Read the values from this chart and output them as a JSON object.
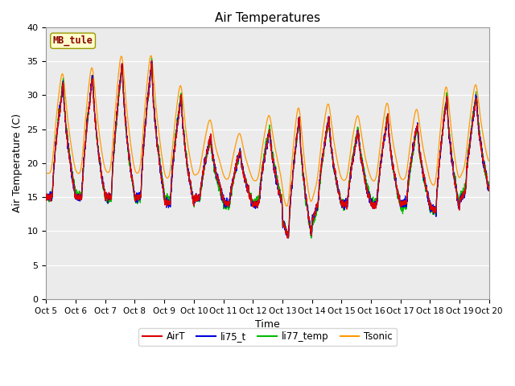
{
  "title": "Air Temperatures",
  "xlabel": "Time",
  "ylabel": "Air Temperature (C)",
  "ylim": [
    0,
    40
  ],
  "yticks": [
    0,
    5,
    10,
    15,
    20,
    25,
    30,
    35,
    40
  ],
  "x_labels": [
    "Oct 5",
    "Oct 6",
    "Oct 7",
    "Oct 8",
    "Oct 9",
    "Oct 10",
    "Oct 11",
    "Oct 12",
    "Oct 13",
    "Oct 14",
    "Oct 15",
    "Oct 16",
    "Oct 17",
    "Oct 18",
    "Oct 19",
    "Oct 20"
  ],
  "station_label": "MB_tule",
  "colors": {
    "AirT": "#dd0000",
    "li75_t": "#0000dd",
    "li77_temp": "#00bb00",
    "Tsonic": "#ff9900"
  },
  "plot_bg": "#ebebeb",
  "legend_entries": [
    "AirT",
    "li75_t",
    "li77_temp",
    "Tsonic"
  ]
}
